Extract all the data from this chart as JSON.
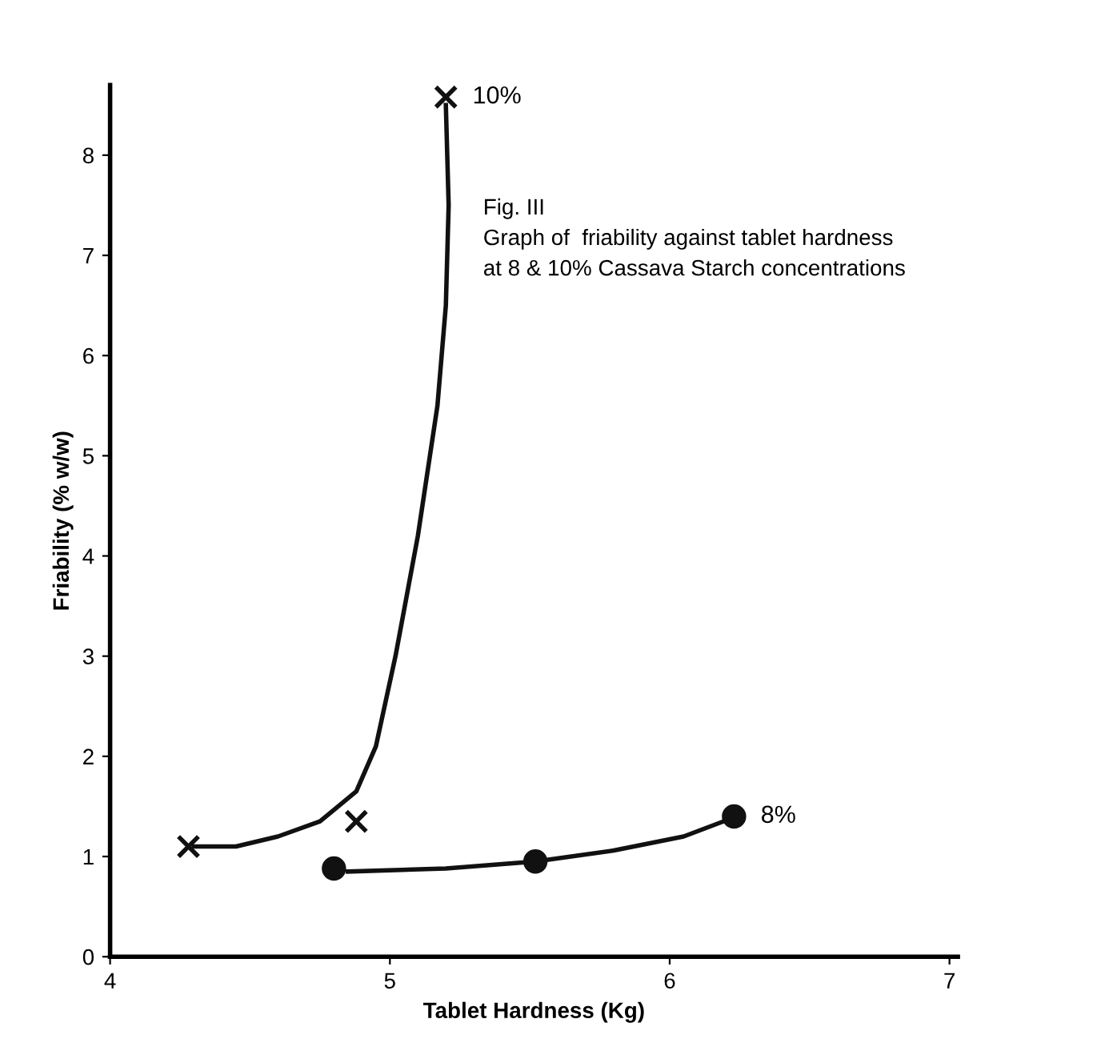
{
  "chart_data": {
    "type": "scatter",
    "xlabel": "Tablet Hardness (Kg)",
    "ylabel": "Friability (% w/w)",
    "xlim": [
      4,
      7.03
    ],
    "ylim": [
      0,
      8.7
    ],
    "xticks": [
      4,
      5,
      6,
      7
    ],
    "yticks": [
      0,
      1,
      2,
      3,
      4,
      5,
      6,
      7,
      8
    ],
    "grid": false,
    "legend": false,
    "annotations": [
      "Fig. III",
      "Graph of  friability against tablet hardness",
      "at 8 & 10% Cassava Starch concentrations"
    ],
    "series": [
      {
        "type": "line",
        "color": "#111111",
        "marker": "none",
        "x": [
          4.3,
          4.45,
          4.6,
          4.75,
          4.88,
          4.95,
          5.02,
          5.1,
          5.17,
          5.2,
          5.21,
          5.2
        ],
        "values": [
          1.1,
          1.1,
          1.2,
          1.35,
          1.65,
          2.1,
          3.0,
          4.2,
          5.5,
          6.5,
          7.5,
          8.5
        ]
      },
      {
        "name": "10%",
        "color": "#111111",
        "marker": "cross",
        "x": [
          4.28,
          4.88,
          5.2
        ],
        "values": [
          1.1,
          1.35,
          8.58
        ]
      },
      {
        "type": "line",
        "color": "#111111",
        "marker": "none",
        "x": [
          4.85,
          5.2,
          5.52,
          5.8,
          6.05,
          6.22
        ],
        "values": [
          0.85,
          0.88,
          0.95,
          1.06,
          1.2,
          1.38
        ]
      },
      {
        "name": "8%",
        "color": "#111111",
        "marker": "circle",
        "x": [
          4.8,
          5.52,
          6.23
        ],
        "values": [
          0.88,
          0.95,
          1.4
        ]
      }
    ]
  }
}
